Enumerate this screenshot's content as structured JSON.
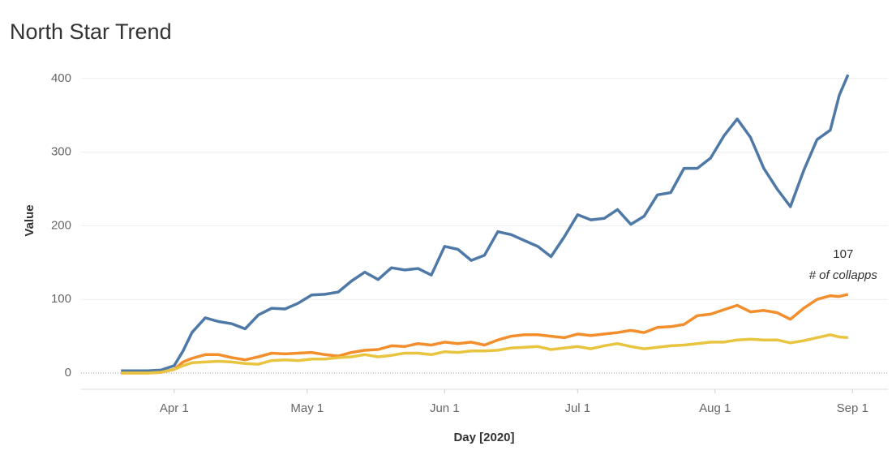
{
  "chart_data": {
    "type": "line",
    "title": "North Star Trend",
    "x_label": "Day [2020]",
    "y_label": "Value",
    "x": [
      "2020-03-20",
      "2020-03-23",
      "2020-03-26",
      "2020-03-29",
      "2020-04-01",
      "2020-04-03",
      "2020-04-05",
      "2020-04-08",
      "2020-04-11",
      "2020-04-14",
      "2020-04-17",
      "2020-04-20",
      "2020-04-23",
      "2020-04-26",
      "2020-04-29",
      "2020-05-02",
      "2020-05-05",
      "2020-05-08",
      "2020-05-11",
      "2020-05-14",
      "2020-05-17",
      "2020-05-20",
      "2020-05-23",
      "2020-05-26",
      "2020-05-29",
      "2020-06-01",
      "2020-06-04",
      "2020-06-07",
      "2020-06-10",
      "2020-06-13",
      "2020-06-16",
      "2020-06-19",
      "2020-06-22",
      "2020-06-25",
      "2020-06-28",
      "2020-07-01",
      "2020-07-04",
      "2020-07-07",
      "2020-07-10",
      "2020-07-13",
      "2020-07-16",
      "2020-07-19",
      "2020-07-22",
      "2020-07-25",
      "2020-07-28",
      "2020-07-31",
      "2020-08-03",
      "2020-08-06",
      "2020-08-09",
      "2020-08-12",
      "2020-08-15",
      "2020-08-18",
      "2020-08-21",
      "2020-08-24",
      "2020-08-27",
      "2020-08-29",
      "2020-08-31"
    ],
    "series": [
      {
        "color": "#4e79a7",
        "values": [
          3,
          3,
          3,
          4,
          10,
          30,
          55,
          75,
          70,
          67,
          60,
          79,
          88,
          87,
          95,
          106,
          107,
          110,
          125,
          137,
          127,
          143,
          140,
          142,
          133,
          172,
          168,
          153,
          160,
          192,
          188,
          180,
          172,
          158,
          185,
          215,
          208,
          210,
          222,
          202,
          213,
          242,
          245,
          278,
          278,
          292,
          322,
          345,
          320,
          278,
          250,
          226,
          275,
          317,
          330,
          377,
          405
        ]
      },
      {
        "name": "# of collapps",
        "color": "#f28e2b",
        "values": [
          0,
          0,
          0,
          1,
          5,
          15,
          20,
          25,
          25,
          21,
          18,
          22,
          27,
          26,
          27,
          28,
          25,
          23,
          28,
          31,
          32,
          37,
          36,
          40,
          38,
          42,
          40,
          42,
          38,
          45,
          50,
          52,
          52,
          50,
          48,
          53,
          51,
          53,
          55,
          58,
          55,
          62,
          63,
          66,
          78,
          80,
          86,
          92,
          83,
          85,
          82,
          73,
          88,
          100,
          105,
          104,
          107
        ]
      },
      {
        "color": "#e9c440",
        "values": [
          0,
          0,
          0,
          1,
          5,
          10,
          14,
          15,
          16,
          15,
          13,
          12,
          17,
          18,
          17,
          19,
          19,
          21,
          22,
          25,
          22,
          24,
          27,
          27,
          25,
          29,
          28,
          30,
          30,
          31,
          34,
          35,
          36,
          32,
          34,
          36,
          33,
          37,
          40,
          36,
          33,
          35,
          37,
          38,
          40,
          42,
          42,
          45,
          46,
          45,
          45,
          41,
          44,
          48,
          52,
          49,
          48
        ]
      }
    ],
    "xlim": [
      "2020-03-11",
      "2020-09-09"
    ],
    "xticks": [
      {
        "value": "2020-04-01",
        "label": "Apr 1"
      },
      {
        "value": "2020-05-01",
        "label": "May 1"
      },
      {
        "value": "2020-06-01",
        "label": "Jun 1"
      },
      {
        "value": "2020-07-01",
        "label": "Jul 1"
      },
      {
        "value": "2020-08-01",
        "label": "Aug 1"
      },
      {
        "value": "2020-09-01",
        "label": "Sep 1"
      }
    ],
    "ylim": [
      -22,
      435
    ],
    "yticks": [
      0,
      100,
      200,
      300,
      400
    ],
    "grid": true
  }
}
